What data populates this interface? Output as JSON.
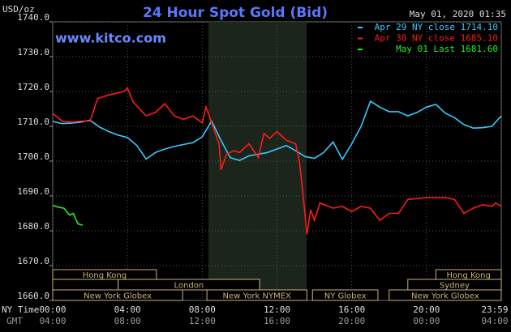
{
  "chart_data": {
    "type": "line",
    "title": "24 Hour Spot Gold (Bid)",
    "timestamp": "May 01, 2020 01:35",
    "watermark": "www.kitco.com",
    "y_label": "USD/oz",
    "x_label": "NY Time",
    "x2_label": "GMT",
    "xlim": [
      0,
      24
    ],
    "ylim": [
      1660,
      1740
    ],
    "grid": true,
    "legend": "top-right",
    "shaded": [
      8.33,
      13.58
    ],
    "yticks": [
      {
        "value": 1660,
        "label": "1660.0"
      },
      {
        "value": 1670,
        "label": "1670.0"
      },
      {
        "value": 1680,
        "label": "1680.0"
      },
      {
        "value": 1690,
        "label": "1690.0"
      },
      {
        "value": 1700,
        "label": "1700.0"
      },
      {
        "value": 1710,
        "label": "1710.0"
      },
      {
        "value": 1720,
        "label": "1720.0"
      },
      {
        "value": 1730,
        "label": "1730.0"
      },
      {
        "value": 1740,
        "label": "1740.0"
      }
    ],
    "xticks": [
      {
        "value": 0,
        "label": "00:00"
      },
      {
        "value": 4,
        "label": "04:00"
      },
      {
        "value": 8,
        "label": "08:00"
      },
      {
        "value": 12,
        "label": "12:00"
      },
      {
        "value": 16,
        "label": "16:00"
      },
      {
        "value": 20,
        "label": "20:00"
      },
      {
        "value": 24,
        "label": "23:59"
      }
    ],
    "x2ticks": [
      {
        "value": 0,
        "label": "04:00"
      },
      {
        "value": 4,
        "label": "08:00"
      },
      {
        "value": 8,
        "label": "12:00"
      },
      {
        "value": 12,
        "label": "16:00"
      },
      {
        "value": 16,
        "label": "20:00"
      },
      {
        "value": 20,
        "label": "00:00"
      },
      {
        "value": 24,
        "label": "04:00"
      }
    ],
    "sessions": [
      [
        {
          "name": "Hong Kong",
          "start": 0,
          "end": 5.55
        },
        {
          "name": "Hong Kong",
          "start": 20.5,
          "end": 24
        }
      ],
      [
        {
          "start": 0,
          "end": 3.5
        },
        {
          "name": "London",
          "start": 3.5,
          "end": 11.07
        },
        {
          "name": "Sydney",
          "start": 19,
          "end": 24
        }
      ],
      [
        {
          "name": "New York Globex",
          "start": 0,
          "end": 6.95
        },
        {
          "name": "New York NYMEX",
          "start": 8.25,
          "end": 13.6
        },
        {
          "name": "NY Globex",
          "start": 13.9,
          "end": 17.4
        },
        {
          "name": "New York Globex",
          "start": 18,
          "end": 24
        }
      ]
    ],
    "series": [
      {
        "name": "Apr 29 NY close 1714.10",
        "color": "#33ccff",
        "x": [
          0,
          0.5,
          1,
          1.5,
          2,
          2.5,
          3,
          3.5,
          4,
          4.5,
          5,
          5.5,
          6,
          6.5,
          7,
          7.5,
          8,
          8.5,
          9,
          9.5,
          10,
          10.5,
          11,
          11.5,
          12,
          12.5,
          13,
          13.5,
          14,
          14.5,
          15,
          15.5,
          16,
          16.5,
          17,
          17.5,
          18,
          18.5,
          19,
          19.5,
          20,
          20.5,
          21,
          21.5,
          22,
          22.5,
          23,
          23.5,
          24
        ],
        "values": [
          1711.4,
          1710.8,
          1710.9,
          1711.2,
          1711.8,
          1709.8,
          1708.5,
          1707.5,
          1706.8,
          1704.5,
          1700.6,
          1702.5,
          1703.5,
          1704.2,
          1704.8,
          1705.3,
          1707,
          1711.5,
          1706,
          1701,
          1700.2,
          1701.5,
          1702,
          1702.5,
          1703.5,
          1704.5,
          1703,
          1701.3,
          1700.8,
          1702.5,
          1705.5,
          1700.5,
          1705,
          1710,
          1717.2,
          1715.5,
          1714.2,
          1714.2,
          1713,
          1714,
          1715.5,
          1716.3,
          1713.8,
          1712.5,
          1710.5,
          1709.5,
          1709.6,
          1710,
          1713
        ]
      },
      {
        "name": "Apr 30 NY close 1685.10",
        "color": "#ff1a1a",
        "x": [
          0,
          0.5,
          1,
          1.5,
          2,
          2.4,
          3,
          3.8,
          4,
          4.3,
          5,
          5.5,
          6,
          6.5,
          7,
          7.5,
          8,
          8.2,
          8.5,
          8.9,
          9,
          9.3,
          9.7,
          10,
          10.5,
          11,
          11.3,
          11.6,
          12,
          12.5,
          13,
          13.2,
          13.4,
          13.6,
          13.8,
          14,
          14.3,
          15,
          15.5,
          16,
          16.5,
          17,
          17.5,
          18,
          18.5,
          19,
          20,
          21,
          21.5,
          22,
          22.5,
          23,
          23.5,
          23.7,
          24
        ],
        "values": [
          1713.7,
          1711.5,
          1711.2,
          1711.5,
          1711.5,
          1718,
          1719,
          1720,
          1721,
          1717,
          1713,
          1714,
          1716.5,
          1713,
          1712,
          1713,
          1711,
          1715.6,
          1711,
          1705,
          1697.5,
          1702,
          1703,
          1702.5,
          1705,
          1701,
          1708,
          1706.5,
          1708.5,
          1706,
          1705,
          1700,
          1690,
          1679,
          1686,
          1683,
          1688,
          1686.5,
          1687,
          1685.5,
          1687,
          1686.5,
          1683,
          1685,
          1685,
          1689,
          1689.5,
          1689.5,
          1689,
          1685,
          1686.5,
          1687.5,
          1687,
          1688,
          1687
        ]
      },
      {
        "name": "May 01 Last 1681.60",
        "color": "#22ee22",
        "x": [
          0,
          0.3,
          0.6,
          0.9,
          1.1,
          1.35,
          1.6
        ],
        "values": [
          1687.3,
          1686.8,
          1686.5,
          1684.5,
          1685,
          1682,
          1681.6
        ]
      }
    ]
  }
}
